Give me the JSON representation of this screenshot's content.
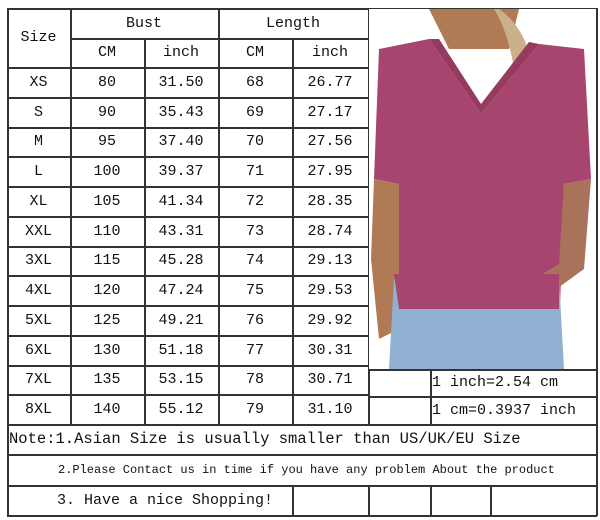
{
  "headers": {
    "size": "Size",
    "bust": "Bust",
    "length": "Length",
    "cm": "CM",
    "inch": "inch"
  },
  "rows": [
    {
      "size": "XS",
      "bust_cm": "80",
      "bust_in": "31.50",
      "len_cm": "68",
      "len_in": "26.77"
    },
    {
      "size": "S",
      "bust_cm": "90",
      "bust_in": "35.43",
      "len_cm": "69",
      "len_in": "27.17"
    },
    {
      "size": "M",
      "bust_cm": "95",
      "bust_in": "37.40",
      "len_cm": "70",
      "len_in": "27.56"
    },
    {
      "size": "L",
      "bust_cm": "100",
      "bust_in": "39.37",
      "len_cm": "71",
      "len_in": "27.95"
    },
    {
      "size": "XL",
      "bust_cm": "105",
      "bust_in": "41.34",
      "len_cm": "72",
      "len_in": "28.35"
    },
    {
      "size": "XXL",
      "bust_cm": "110",
      "bust_in": "43.31",
      "len_cm": "73",
      "len_in": "28.74"
    },
    {
      "size": "3XL",
      "bust_cm": "115",
      "bust_in": "45.28",
      "len_cm": "74",
      "len_in": "29.13"
    },
    {
      "size": "4XL",
      "bust_cm": "120",
      "bust_in": "47.24",
      "len_cm": "75",
      "len_in": "29.53"
    },
    {
      "size": "5XL",
      "bust_cm": "125",
      "bust_in": "49.21",
      "len_cm": "76",
      "len_in": "29.92"
    },
    {
      "size": "6XL",
      "bust_cm": "130",
      "bust_in": "51.18",
      "len_cm": "77",
      "len_in": "30.31"
    },
    {
      "size": "7XL",
      "bust_cm": "135",
      "bust_in": "53.15",
      "len_cm": "78",
      "len_in": "30.71"
    },
    {
      "size": "8XL",
      "bust_cm": "140",
      "bust_in": "55.12",
      "len_cm": "79",
      "len_in": "31.10"
    }
  ],
  "conversions": [
    "1 inch=2.54 cm",
    "1 cm=0.3937 inch"
  ],
  "notes": [
    "Note:1.Asian Size is usually smaller than US/UK/EU Size",
    "2.Please Contact us in time if you have any problem About the product",
    "3. Have a nice Shopping!"
  ],
  "colors": {
    "shirt": "#a8456f",
    "jeans": "#8fb0d0",
    "skin": "#b07a55",
    "hair": "#c9b08a"
  }
}
